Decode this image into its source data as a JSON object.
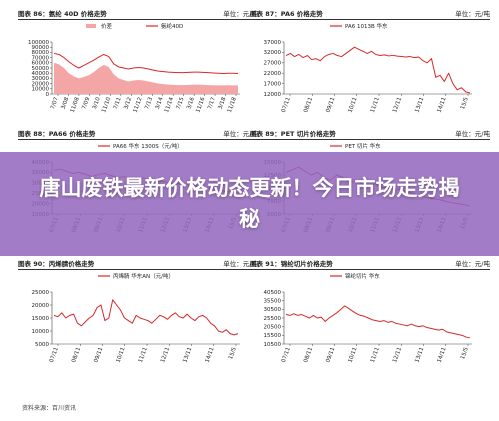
{
  "banner": {
    "headline": "唐山废铁最新价格动态更新！今日市场走势揭秘"
  },
  "source": "资料来源：百川资讯",
  "chart_data": [
    {
      "id": "p86",
      "type": "area-line",
      "title": "图表 86：氨纶 40D 价格走势",
      "unit": "单位：元/吨",
      "ylim": [
        0,
        100000
      ],
      "yticks": [
        0,
        10000,
        20000,
        30000,
        40000,
        50000,
        60000,
        70000,
        80000,
        90000,
        100000
      ],
      "xticks": [
        "7/07",
        "3/08",
        "11/08",
        "7/09",
        "3/10",
        "11/10",
        "7/11",
        "3/12",
        "11/12",
        "7/13",
        "3/14",
        "11/14",
        "7/15",
        "3/16",
        "11/16",
        "7/17",
        "3/18",
        "11/18"
      ],
      "legend_pos": "top",
      "series": [
        {
          "name": "价差",
          "kind": "area",
          "color": "#f4a6a6",
          "values": [
            60000,
            57000,
            50000,
            40000,
            34000,
            30000,
            33000,
            36000,
            42000,
            50000,
            56000,
            52000,
            38000,
            30000,
            27000,
            24000,
            26000,
            27000,
            26000,
            24000,
            22000,
            20000,
            19000,
            18000,
            17500,
            17000,
            17000,
            17500,
            18000,
            18000,
            17500,
            17000,
            16800,
            16500,
            16500,
            16800,
            16600,
            16500
          ]
        },
        {
          "name": "氨纶40D",
          "kind": "line",
          "color": "#d72828",
          "values": [
            78000,
            76000,
            70000,
            62000,
            55000,
            50000,
            55000,
            60000,
            65000,
            71000,
            76000,
            72000,
            58000,
            52000,
            50000,
            48000,
            50000,
            51000,
            50000,
            48000,
            46000,
            44000,
            43000,
            42000,
            41500,
            41000,
            41000,
            41500,
            42000,
            42000,
            41500,
            41000,
            40500,
            40000,
            39500,
            40000,
            39800,
            39500
          ]
        }
      ]
    },
    {
      "id": "p87",
      "type": "line",
      "title": "图表 87：PA6 价格走势",
      "unit": "单位：元/吨",
      "ylim": [
        12000,
        37000
      ],
      "yticks": [
        12000,
        17000,
        22000,
        27000,
        32000,
        37000
      ],
      "xticks": [
        "07/11",
        "08/11",
        "09/11",
        "10/11",
        "11/11",
        "12/11",
        "13/11",
        "14/11",
        "15/5"
      ],
      "legend_pos": "top",
      "series": [
        {
          "name": "PA6 1013B 华东",
          "kind": "line",
          "color": "#d72828",
          "values": [
            30500,
            31500,
            30000,
            31000,
            29500,
            30500,
            28500,
            29000,
            28000,
            30000,
            31000,
            31500,
            30500,
            30000,
            31500,
            33000,
            34500,
            33500,
            32500,
            31500,
            32500,
            31000,
            30500,
            30800,
            30300,
            30600,
            30200,
            30000,
            29800,
            30000,
            29500,
            29800,
            28000,
            27000,
            29000,
            20000,
            21000,
            18000,
            22000,
            17000,
            14000,
            15000,
            13000,
            12500
          ]
        }
      ]
    },
    {
      "id": "p88",
      "type": "line",
      "title": "图表 88：PA66 价格走势",
      "unit": "单位：元/吨",
      "ylim": [
        15000,
        40000
      ],
      "yticks": [
        15000,
        20000,
        25000,
        30000,
        35000,
        40000
      ],
      "xticks": [
        "07/11",
        "08/11",
        "09/11",
        "10/11",
        "11/11",
        "12/11",
        "13/11",
        "14/11",
        "15/5"
      ],
      "legend_pos": "top",
      "series": [
        {
          "name": "PA66 华东 1300S（元/吨）",
          "kind": "line",
          "color": "#d72828",
          "values": [
            36000,
            36500,
            35500,
            34500,
            35000,
            34000,
            33000,
            34000,
            34500,
            33500,
            32500,
            33000,
            32000,
            31500,
            32500,
            31000,
            30500,
            31000,
            30000,
            29500,
            30000,
            29000,
            28500,
            28000,
            27500,
            27000,
            26500,
            26000,
            25500,
            25000
          ]
        }
      ]
    },
    {
      "id": "p89",
      "type": "line",
      "title": "图表 89：PET 切片价格走势",
      "unit": "单位：元/吨",
      "ylim": [
        5000,
        15000
      ],
      "yticks": [
        5000,
        7500,
        10000,
        12500,
        15000
      ],
      "xticks": [
        "07/11",
        "08/11",
        "09/11",
        "10/11",
        "11/11",
        "12/11",
        "13/11",
        "14/11",
        "15/5"
      ],
      "legend_pos": "top",
      "series": [
        {
          "name": "PET 切片 华东",
          "kind": "line",
          "color": "#d72828",
          "values": [
            13000,
            13500,
            14000,
            13200,
            12500,
            13000,
            12000,
            11500,
            12500,
            12000,
            11000,
            11500,
            10800,
            10500,
            10800,
            10200,
            10000,
            9500,
            9800,
            9200,
            9000,
            8500,
            8200,
            8000,
            7800,
            7500,
            7200,
            7000,
            6800,
            6500
          ]
        }
      ]
    },
    {
      "id": "p90",
      "type": "line",
      "title": "图表 90：丙烯腈价格走势",
      "unit": "单位：元/吨",
      "ylim": [
        5000,
        25000
      ],
      "yticks": [
        5000,
        10000,
        15000,
        20000,
        25000
      ],
      "xticks": [
        "07/11",
        "08/11",
        "09/11",
        "10/11",
        "11/11",
        "12/11",
        "13/11",
        "14/11",
        "15/5"
      ],
      "legend_pos": "top",
      "series": [
        {
          "name": "丙烯腈 华东AN（元/吨）",
          "kind": "line",
          "color": "#d72828",
          "values": [
            16000,
            15500,
            17000,
            15000,
            16000,
            16500,
            13000,
            12000,
            13500,
            15000,
            16000,
            19000,
            20000,
            14000,
            15000,
            22000,
            20000,
            18000,
            15000,
            14000,
            13000,
            16000,
            15000,
            14500,
            14000,
            13000,
            14500,
            16000,
            15500,
            14500,
            16000,
            17000,
            15500,
            15000,
            16500,
            15000,
            14000,
            15500,
            16000,
            15000,
            13000,
            12000,
            10000,
            9500,
            10500,
            9000,
            8500,
            9000
          ]
        }
      ]
    },
    {
      "id": "p91",
      "type": "line",
      "title": "图表 91：锦纶切片价格走势",
      "unit": "单位：元/吨",
      "ylim": [
        10500,
        40500
      ],
      "yticks": [
        10500,
        15500,
        20500,
        25500,
        30500,
        35500,
        40500
      ],
      "xticks": [
        "07/11",
        "08/11",
        "09/11",
        "10/11",
        "11/11",
        "12/11",
        "13/11",
        "14/11",
        "15/5"
      ],
      "legend_pos": "top",
      "series": [
        {
          "name": "锦纶切片 华东",
          "kind": "line",
          "color": "#d72828",
          "values": [
            27500,
            27000,
            28000,
            27000,
            27500,
            26500,
            25500,
            27000,
            25500,
            26000,
            23500,
            25500,
            27000,
            28500,
            30500,
            32500,
            31000,
            29500,
            28000,
            27000,
            26500,
            25500,
            24500,
            24000,
            23500,
            24000,
            23000,
            23500,
            22500,
            22000,
            21500,
            21000,
            22000,
            21000,
            20500,
            21000,
            20000,
            19500,
            19000,
            18500,
            19000,
            17500,
            17000,
            16500,
            16000,
            15500,
            14500,
            14000
          ]
        }
      ]
    }
  ]
}
